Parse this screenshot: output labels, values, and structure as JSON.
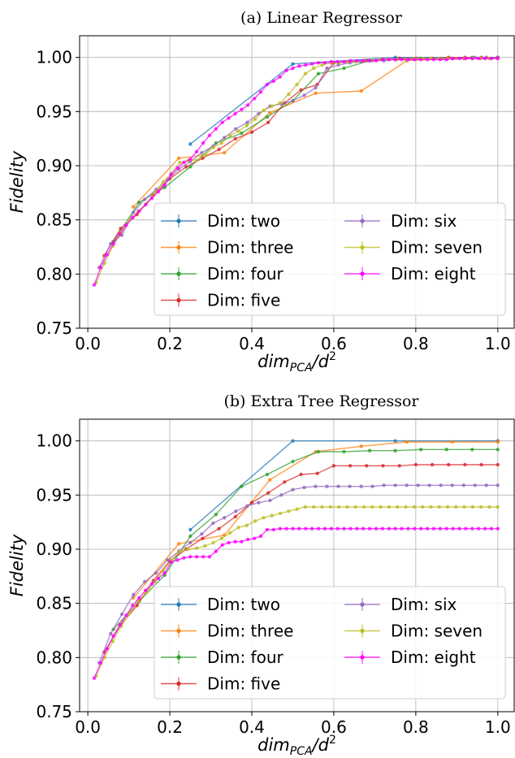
{
  "chart_data": [
    {
      "type": "line",
      "title": "(a) Linear Regressor",
      "ylabel": "Fidelity",
      "xlabel_main": "dim",
      "xlabel_sub": "PCA",
      "xlabel_tail": "/d",
      "xlabel_sup": "2",
      "xlim": [
        -0.02,
        1.04
      ],
      "ylim": [
        0.75,
        1.02
      ],
      "xticks": [
        0.0,
        0.2,
        0.4,
        0.6,
        0.8,
        1.0
      ],
      "xtick_labels": [
        "0.0",
        "0.2",
        "0.4",
        "0.6",
        "0.8",
        "1.0"
      ],
      "yticks": [
        0.75,
        0.8,
        0.85,
        0.9,
        0.95,
        1.0
      ],
      "ytick_labels": [
        "0.75",
        "0.80",
        "0.85",
        "0.90",
        "0.95",
        "1.00"
      ],
      "grid": true,
      "legend_position": "lower-right",
      "series": [
        {
          "name": "Dim: two",
          "color": "#1f77b4",
          "x": [
            0.25,
            0.5,
            0.75,
            1.0
          ],
          "y": [
            0.92,
            0.994,
            1.0,
            1.0
          ]
        },
        {
          "name": "Dim: three",
          "color": "#ff7f0e",
          "x": [
            0.111,
            0.222,
            0.333,
            0.444,
            0.556,
            0.667,
            0.778,
            0.889,
            1.0
          ],
          "y": [
            0.862,
            0.907,
            0.912,
            0.949,
            0.967,
            0.969,
            0.997,
            0.999,
            1.0
          ]
        },
        {
          "name": "Dim: four",
          "color": "#2ca02c",
          "x": [
            0.0625,
            0.125,
            0.1875,
            0.25,
            0.3125,
            0.375,
            0.4375,
            0.5,
            0.5625,
            0.625,
            0.6875,
            0.75,
            0.8125,
            0.875,
            0.9375,
            1.0
          ],
          "y": [
            0.83,
            0.866,
            0.88,
            0.899,
            0.921,
            0.93,
            0.945,
            0.96,
            0.985,
            0.99,
            0.997,
            0.998,
            0.999,
            0.999,
            1.0,
            1.0
          ]
        },
        {
          "name": "Dim: five",
          "color": "#d62728",
          "x": [
            0.04,
            0.08,
            0.12,
            0.16,
            0.2,
            0.24,
            0.28,
            0.32,
            0.36,
            0.4,
            0.44,
            0.48,
            0.52,
            0.56,
            0.6,
            0.64,
            0.68,
            0.72,
            0.76,
            0.8,
            0.84,
            0.88,
            0.92,
            0.96,
            1.0
          ],
          "y": [
            0.817,
            0.842,
            0.855,
            0.873,
            0.888,
            0.899,
            0.907,
            0.915,
            0.925,
            0.931,
            0.94,
            0.958,
            0.97,
            0.975,
            0.995,
            0.996,
            0.997,
            0.998,
            0.999,
            0.999,
            0.999,
            1.0,
            1.0,
            1.0,
            1.0
          ]
        },
        {
          "name": "Dim: six",
          "color": "#9467bd",
          "x": [
            0.0278,
            0.0556,
            0.0833,
            0.1111,
            0.1389,
            0.1667,
            0.1944,
            0.2222,
            0.25,
            0.2778,
            0.3056,
            0.3333,
            0.3611,
            0.3889,
            0.4167,
            0.4444,
            0.4722,
            0.5,
            0.5278,
            0.5556,
            0.5833,
            0.6111,
            0.6389,
            0.6667,
            0.6944,
            0.7222,
            0.75,
            0.7778,
            0.8056,
            0.8333,
            0.8611,
            0.8889,
            0.9167,
            0.9444,
            0.9722,
            1.0
          ],
          "y": [
            0.806,
            0.828,
            0.836,
            0.857,
            0.869,
            0.878,
            0.887,
            0.897,
            0.904,
            0.912,
            0.918,
            0.926,
            0.934,
            0.94,
            0.948,
            0.955,
            0.957,
            0.96,
            0.965,
            0.972,
            0.99,
            0.993,
            0.995,
            0.996,
            0.997,
            0.997,
            0.998,
            0.998,
            0.999,
            0.999,
            0.999,
            0.999,
            0.999,
            1.0,
            1.0,
            1.0
          ]
        },
        {
          "name": "Dim: seven",
          "color": "#bcbd22",
          "x": [
            0.0204,
            0.0408,
            0.0612,
            0.0816,
            0.102,
            0.1224,
            0.1429,
            0.1633,
            0.1837,
            0.2041,
            0.2245,
            0.2449,
            0.2653,
            0.2857,
            0.3061,
            0.3265,
            0.3469,
            0.3673,
            0.3878,
            0.4082,
            0.4286,
            0.449,
            0.4694,
            0.4898,
            0.5102,
            0.5306,
            0.551,
            0.5714,
            0.5918,
            0.6122,
            0.6327,
            0.6531,
            0.6735,
            0.6939,
            0.7143,
            0.7347,
            0.7551,
            0.7755,
            0.7959,
            0.8163,
            0.8367,
            0.8571,
            0.8776,
            0.898,
            0.9184,
            0.9388,
            0.9592,
            0.9796,
            1.0
          ],
          "y": [
            0.792,
            0.81,
            0.826,
            0.838,
            0.85,
            0.858,
            0.865,
            0.875,
            0.885,
            0.893,
            0.903,
            0.905,
            0.905,
            0.91,
            0.917,
            0.921,
            0.928,
            0.932,
            0.937,
            0.943,
            0.951,
            0.955,
            0.958,
            0.966,
            0.975,
            0.985,
            0.99,
            0.993,
            0.995,
            0.995,
            0.996,
            0.996,
            0.997,
            0.997,
            0.998,
            0.998,
            0.998,
            0.998,
            0.999,
            0.999,
            0.999,
            0.999,
            0.999,
            0.999,
            0.999,
            0.999,
            0.999,
            0.999,
            0.999
          ]
        },
        {
          "name": "Dim: eight",
          "color": "#ff00ff",
          "x": [
            0.0156,
            0.0313,
            0.0469,
            0.0625,
            0.0781,
            0.0938,
            0.1094,
            0.125,
            0.1406,
            0.1563,
            0.1719,
            0.1875,
            0.2031,
            0.2188,
            0.2344,
            0.25,
            0.2656,
            0.2813,
            0.2969,
            0.3125,
            0.3281,
            0.3438,
            0.3594,
            0.375,
            0.3906,
            0.4063,
            0.4219,
            0.4375,
            0.4531,
            0.4688,
            0.4844,
            0.5,
            0.5156,
            0.5313,
            0.5469,
            0.5625,
            0.5781,
            0.5938,
            0.6094,
            0.625,
            0.6406,
            0.6563,
            0.6719,
            0.6875,
            0.7031,
            0.7188,
            0.7344,
            0.75,
            0.7656,
            0.7813,
            0.7969,
            0.8125,
            0.8281,
            0.8438,
            0.8594,
            0.875,
            0.8906,
            0.9063,
            0.9219,
            0.9375,
            0.9531,
            0.9688,
            0.9844,
            1.0
          ],
          "y": [
            0.79,
            0.806,
            0.818,
            0.828,
            0.837,
            0.845,
            0.852,
            0.858,
            0.864,
            0.87,
            0.876,
            0.882,
            0.892,
            0.898,
            0.903,
            0.906,
            0.913,
            0.921,
            0.928,
            0.934,
            0.94,
            0.944,
            0.948,
            0.952,
            0.956,
            0.962,
            0.968,
            0.975,
            0.978,
            0.982,
            0.988,
            0.99,
            0.992,
            0.993,
            0.994,
            0.995,
            0.995,
            0.996,
            0.996,
            0.996,
            0.997,
            0.997,
            0.997,
            0.997,
            0.997,
            0.998,
            0.998,
            0.998,
            0.998,
            0.998,
            0.998,
            0.998,
            0.998,
            0.998,
            0.998,
            0.998,
            0.999,
            0.999,
            0.999,
            0.999,
            0.999,
            0.999,
            0.999,
            0.999
          ]
        }
      ]
    },
    {
      "type": "line",
      "title": "(b) Extra Tree Regressor",
      "ylabel": "Fidelity",
      "xlabel_main": "dim",
      "xlabel_sub": "PCA",
      "xlabel_tail": "/d",
      "xlabel_sup": "2",
      "xlim": [
        -0.02,
        1.04
      ],
      "ylim": [
        0.75,
        1.02
      ],
      "xticks": [
        0.0,
        0.2,
        0.4,
        0.6,
        0.8,
        1.0
      ],
      "xtick_labels": [
        "0.0",
        "0.2",
        "0.4",
        "0.6",
        "0.8",
        "1.0"
      ],
      "yticks": [
        0.75,
        0.8,
        0.85,
        0.9,
        0.95,
        1.0
      ],
      "ytick_labels": [
        "0.75",
        "0.80",
        "0.85",
        "0.90",
        "0.95",
        "1.00"
      ],
      "grid": true,
      "legend_position": "lower-right",
      "series": [
        {
          "name": "Dim: two",
          "color": "#1f77b4",
          "x": [
            0.25,
            0.5,
            0.75,
            1.0
          ],
          "y": [
            0.918,
            1.0,
            1.0,
            1.0
          ]
        },
        {
          "name": "Dim: three",
          "color": "#ff7f0e",
          "x": [
            0.111,
            0.222,
            0.333,
            0.444,
            0.556,
            0.667,
            0.778,
            0.889,
            1.0
          ],
          "y": [
            0.855,
            0.905,
            0.913,
            0.964,
            0.99,
            0.995,
            0.999,
            0.999,
            0.999
          ]
        },
        {
          "name": "Dim: four",
          "color": "#2ca02c",
          "x": [
            0.0625,
            0.125,
            0.1875,
            0.25,
            0.3125,
            0.375,
            0.4375,
            0.5,
            0.5625,
            0.625,
            0.6875,
            0.75,
            0.8125,
            0.875,
            0.9375,
            1.0
          ],
          "y": [
            0.826,
            0.852,
            0.876,
            0.912,
            0.932,
            0.958,
            0.969,
            0.981,
            0.99,
            0.99,
            0.991,
            0.991,
            0.992,
            0.992,
            0.992,
            0.992
          ]
        },
        {
          "name": "Dim: five",
          "color": "#d62728",
          "x": [
            0.04,
            0.08,
            0.12,
            0.16,
            0.2,
            0.24,
            0.28,
            0.32,
            0.36,
            0.4,
            0.44,
            0.48,
            0.52,
            0.56,
            0.6,
            0.64,
            0.68,
            0.72,
            0.76,
            0.8,
            0.84,
            0.88,
            0.92,
            0.96,
            1.0
          ],
          "y": [
            0.805,
            0.83,
            0.848,
            0.871,
            0.889,
            0.9,
            0.91,
            0.919,
            0.93,
            0.943,
            0.952,
            0.962,
            0.969,
            0.97,
            0.977,
            0.977,
            0.977,
            0.977,
            0.977,
            0.978,
            0.978,
            0.978,
            0.978,
            0.978,
            0.978
          ]
        },
        {
          "name": "Dim: six",
          "color": "#9467bd",
          "x": [
            0.0278,
            0.0556,
            0.0833,
            0.1111,
            0.1389,
            0.1667,
            0.1944,
            0.2222,
            0.25,
            0.2778,
            0.3056,
            0.3333,
            0.3611,
            0.3889,
            0.4167,
            0.4444,
            0.4722,
            0.5,
            0.5278,
            0.5556,
            0.5833,
            0.6111,
            0.6389,
            0.6667,
            0.6944,
            0.7222,
            0.75,
            0.7778,
            0.8056,
            0.8333,
            0.8611,
            0.8889,
            0.9167,
            0.9444,
            0.9722,
            1.0
          ],
          "y": [
            0.795,
            0.822,
            0.84,
            0.858,
            0.87,
            0.878,
            0.89,
            0.898,
            0.906,
            0.914,
            0.924,
            0.929,
            0.935,
            0.94,
            0.943,
            0.945,
            0.95,
            0.955,
            0.957,
            0.958,
            0.958,
            0.958,
            0.958,
            0.958,
            0.958,
            0.959,
            0.959,
            0.959,
            0.959,
            0.959,
            0.959,
            0.959,
            0.959,
            0.959,
            0.959,
            0.959
          ]
        },
        {
          "name": "Dim: seven",
          "color": "#bcbd22",
          "x": [
            0.0204,
            0.0408,
            0.0612,
            0.0816,
            0.102,
            0.1224,
            0.1429,
            0.1633,
            0.1837,
            0.2041,
            0.2245,
            0.2449,
            0.2653,
            0.2857,
            0.3061,
            0.3265,
            0.3469,
            0.3673,
            0.3878,
            0.4082,
            0.4286,
            0.449,
            0.4694,
            0.4898,
            0.5102,
            0.5306,
            0.551,
            0.5714,
            0.5918,
            0.6122,
            0.6327,
            0.6531,
            0.6735,
            0.6939,
            0.7143,
            0.7347,
            0.7551,
            0.7755,
            0.7959,
            0.8163,
            0.8367,
            0.8571,
            0.8776,
            0.898,
            0.9184,
            0.9388,
            0.9592,
            0.9796,
            1.0
          ],
          "y": [
            0.783,
            0.8,
            0.815,
            0.829,
            0.841,
            0.852,
            0.86,
            0.87,
            0.88,
            0.89,
            0.898,
            0.9,
            0.901,
            0.903,
            0.906,
            0.91,
            0.915,
            0.92,
            0.922,
            0.926,
            0.929,
            0.931,
            0.933,
            0.935,
            0.937,
            0.939,
            0.939,
            0.939,
            0.939,
            0.939,
            0.939,
            0.939,
            0.939,
            0.939,
            0.939,
            0.939,
            0.939,
            0.939,
            0.939,
            0.939,
            0.939,
            0.939,
            0.939,
            0.939,
            0.939,
            0.939,
            0.939,
            0.939,
            0.939
          ]
        },
        {
          "name": "Dim: eight",
          "color": "#ff00ff",
          "x": [
            0.0156,
            0.0313,
            0.0469,
            0.0625,
            0.0781,
            0.0938,
            0.1094,
            0.125,
            0.1406,
            0.1563,
            0.1719,
            0.1875,
            0.2031,
            0.2188,
            0.2344,
            0.25,
            0.2656,
            0.2813,
            0.2969,
            0.3125,
            0.3281,
            0.3438,
            0.3594,
            0.375,
            0.3906,
            0.4063,
            0.4219,
            0.4375,
            0.4531,
            0.4688,
            0.4844,
            0.5,
            0.5156,
            0.5313,
            0.5469,
            0.5625,
            0.5781,
            0.5938,
            0.6094,
            0.625,
            0.6406,
            0.6563,
            0.6719,
            0.6875,
            0.7031,
            0.7188,
            0.7344,
            0.75,
            0.7656,
            0.7813,
            0.7969,
            0.8125,
            0.8281,
            0.8438,
            0.8594,
            0.875,
            0.8906,
            0.9063,
            0.9219,
            0.9375,
            0.9531,
            0.9688,
            0.9844,
            1.0
          ],
          "y": [
            0.781,
            0.795,
            0.808,
            0.82,
            0.83,
            0.839,
            0.848,
            0.855,
            0.862,
            0.868,
            0.873,
            0.878,
            0.888,
            0.89,
            0.892,
            0.893,
            0.893,
            0.893,
            0.893,
            0.898,
            0.904,
            0.906,
            0.907,
            0.907,
            0.909,
            0.91,
            0.912,
            0.918,
            0.918,
            0.919,
            0.919,
            0.919,
            0.919,
            0.919,
            0.919,
            0.919,
            0.919,
            0.919,
            0.919,
            0.919,
            0.919,
            0.919,
            0.919,
            0.919,
            0.919,
            0.919,
            0.919,
            0.919,
            0.919,
            0.919,
            0.919,
            0.919,
            0.919,
            0.919,
            0.919,
            0.919,
            0.919,
            0.919,
            0.919,
            0.919,
            0.919,
            0.919,
            0.919,
            0.919
          ]
        }
      ]
    }
  ]
}
